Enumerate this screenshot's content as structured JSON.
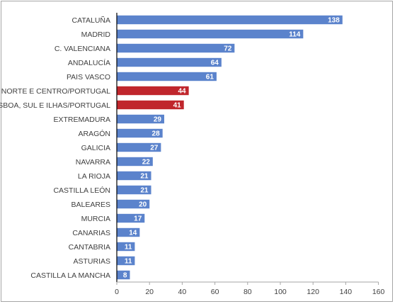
{
  "chart_data": {
    "type": "bar",
    "orientation": "horizontal",
    "categories": [
      "CATALUÑA",
      "MADRID",
      "C. VALENCIANA",
      "ANDALUCÍA",
      "PAIS VASCO",
      "NORTE E CENTRO/PORTUGAL",
      "LISBOA, SUL E ILHAS/PORTUGAL",
      "EXTREMADURA",
      "ARAGÓN",
      "GALICIA",
      "NAVARRA",
      "LA RIOJA",
      "CASTILLA LEÓN",
      "BALEARES",
      "MURCIA",
      "CANARIAS",
      "CANTABRIA",
      "ASTURIAS",
      "CASTILLA LA MANCHA"
    ],
    "values": [
      138,
      114,
      72,
      64,
      61,
      44,
      41,
      29,
      28,
      27,
      22,
      21,
      21,
      20,
      17,
      14,
      11,
      11,
      8
    ],
    "data_labels": [
      "138",
      "114",
      "72",
      "64",
      "61",
      "44",
      "41",
      "29",
      "28",
      "27",
      "22",
      "21",
      "21",
      "20",
      "17",
      "14",
      "11",
      "11",
      "8"
    ],
    "highlighted": [
      "NORTE E CENTRO/PORTUGAL",
      "LISBOA, SUL E ILHAS/PORTUGAL"
    ],
    "xlim": [
      0,
      160
    ],
    "xticks": [
      "0",
      "20",
      "40",
      "60",
      "80",
      "100",
      "120",
      "140",
      "160"
    ],
    "title": "",
    "xlabel": "",
    "ylabel": "",
    "grid": false,
    "legend": "none",
    "colors": {
      "bar": "#5b83cc",
      "highlight": "#c0262c",
      "axis": "#000000",
      "tick_mark": "#a6a6a6",
      "frame": "#a6a6a6"
    }
  }
}
